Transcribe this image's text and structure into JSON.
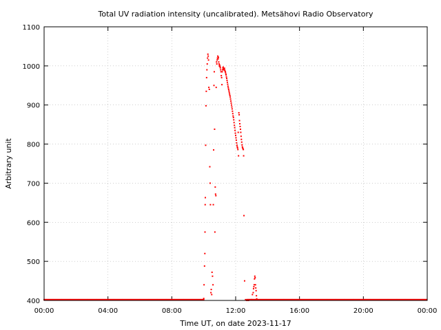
{
  "chart_data": {
    "type": "scatter",
    "title": "Total UV radiation intensity (uncalibrated). Metsähovi Radio Observatory",
    "xlabel": "Time UT, on date 2023-11-17",
    "ylabel": "Arbitrary unit",
    "xlim": [
      0,
      24
    ],
    "ylim": [
      400,
      1100
    ],
    "grid": true,
    "x_ticks": [
      {
        "value": 0,
        "label": "00:00"
      },
      {
        "value": 4,
        "label": "04:00"
      },
      {
        "value": 8,
        "label": "08:00"
      },
      {
        "value": 12,
        "label": "12:00"
      },
      {
        "value": 16,
        "label": "16:00"
      },
      {
        "value": 20,
        "label": "20:00"
      },
      {
        "value": 24,
        "label": "00:00"
      }
    ],
    "y_ticks": [
      {
        "value": 400,
        "label": "400"
      },
      {
        "value": 500,
        "label": "500"
      },
      {
        "value": 600,
        "label": "600"
      },
      {
        "value": 700,
        "label": "700"
      },
      {
        "value": 800,
        "label": "800"
      },
      {
        "value": 900,
        "label": "900"
      },
      {
        "value": 1000,
        "label": "1000"
      },
      {
        "value": 1100,
        "label": "1100"
      }
    ],
    "series": [
      {
        "color": "#ff0000",
        "baseline": {
          "value": 402,
          "ranges": [
            [
              0.0,
              10.0
            ],
            [
              12.7,
              24.0
            ]
          ]
        },
        "points": [
          [
            10.0,
            405
          ],
          [
            10.02,
            440
          ],
          [
            10.05,
            488
          ],
          [
            10.07,
            520
          ],
          [
            10.08,
            575
          ],
          [
            10.09,
            645
          ],
          [
            10.1,
            663
          ],
          [
            10.12,
            797
          ],
          [
            10.14,
            898
          ],
          [
            10.16,
            935
          ],
          [
            10.18,
            970
          ],
          [
            10.2,
            990
          ],
          [
            10.22,
            1005
          ],
          [
            10.24,
            1020
          ],
          [
            10.26,
            1030
          ],
          [
            10.28,
            1025
          ],
          [
            10.3,
            1015
          ],
          [
            10.32,
            945
          ],
          [
            10.35,
            940
          ],
          [
            10.38,
            742
          ],
          [
            10.4,
            700
          ],
          [
            10.42,
            645
          ],
          [
            10.45,
            420
          ],
          [
            10.47,
            428
          ],
          [
            10.5,
            415
          ],
          [
            10.52,
            472
          ],
          [
            10.55,
            462
          ],
          [
            10.58,
            440
          ],
          [
            10.6,
            645
          ],
          [
            10.62,
            785
          ],
          [
            10.64,
            950
          ],
          [
            10.66,
            985
          ],
          [
            10.68,
            838
          ],
          [
            10.7,
            575
          ],
          [
            10.72,
            690
          ],
          [
            10.74,
            672
          ],
          [
            10.76,
            668
          ],
          [
            10.78,
            945
          ],
          [
            10.8,
            1010
          ],
          [
            10.82,
            1005
          ],
          [
            10.84,
            1015
          ],
          [
            10.86,
            1020
          ],
          [
            10.88,
            1025
          ],
          [
            10.9,
            1018
          ],
          [
            10.92,
            1022
          ],
          [
            10.94,
            1010
          ],
          [
            10.96,
            1005
          ],
          [
            10.98,
            1000
          ],
          [
            11.0,
            1002
          ],
          [
            11.02,
            998
          ],
          [
            11.04,
            995
          ],
          [
            11.06,
            990
          ],
          [
            11.08,
            985
          ],
          [
            11.1,
            975
          ],
          [
            11.12,
            970
          ],
          [
            11.14,
            952
          ],
          [
            11.16,
            985
          ],
          [
            11.18,
            990
          ],
          [
            11.2,
            995
          ],
          [
            11.22,
            997
          ],
          [
            11.24,
            993
          ],
          [
            11.26,
            990
          ],
          [
            11.28,
            992
          ],
          [
            11.3,
            994
          ],
          [
            11.32,
            989
          ],
          [
            11.34,
            986
          ],
          [
            11.36,
            984
          ],
          [
            11.38,
            980
          ],
          [
            11.4,
            977
          ],
          [
            11.42,
            972
          ],
          [
            11.44,
            968
          ],
          [
            11.46,
            963
          ],
          [
            11.48,
            958
          ],
          [
            11.5,
            953
          ],
          [
            11.52,
            948
          ],
          [
            11.54,
            944
          ],
          [
            11.56,
            940
          ],
          [
            11.58,
            936
          ],
          [
            11.6,
            932
          ],
          [
            11.62,
            928
          ],
          [
            11.64,
            924
          ],
          [
            11.66,
            920
          ],
          [
            11.68,
            915
          ],
          [
            11.7,
            910
          ],
          [
            11.72,
            905
          ],
          [
            11.74,
            900
          ],
          [
            11.76,
            895
          ],
          [
            11.78,
            890
          ],
          [
            11.8,
            884
          ],
          [
            11.82,
            878
          ],
          [
            11.84,
            872
          ],
          [
            11.86,
            868
          ],
          [
            11.88,
            862
          ],
          [
            11.9,
            855
          ],
          [
            11.92,
            848
          ],
          [
            11.94,
            842
          ],
          [
            11.96,
            835
          ],
          [
            11.98,
            828
          ],
          [
            12.0,
            822
          ],
          [
            12.02,
            816
          ],
          [
            12.04,
            810
          ],
          [
            12.06,
            803
          ],
          [
            12.08,
            797
          ],
          [
            12.1,
            793
          ],
          [
            12.12,
            790
          ],
          [
            12.14,
            786
          ],
          [
            12.16,
            830
          ],
          [
            12.18,
            770
          ],
          [
            12.2,
            880
          ],
          [
            12.22,
            875
          ],
          [
            12.24,
            860
          ],
          [
            12.26,
            852
          ],
          [
            12.28,
            845
          ],
          [
            12.3,
            838
          ],
          [
            12.32,
            830
          ],
          [
            12.34,
            820
          ],
          [
            12.36,
            812
          ],
          [
            12.38,
            805
          ],
          [
            12.4,
            798
          ],
          [
            12.42,
            793
          ],
          [
            12.44,
            790
          ],
          [
            12.46,
            788
          ],
          [
            12.48,
            786
          ],
          [
            12.5,
            770
          ],
          [
            12.52,
            617
          ],
          [
            12.56,
            450
          ],
          [
            12.62,
            402
          ],
          [
            12.7,
            400
          ],
          [
            12.8,
            400
          ],
          [
            12.9,
            401
          ],
          [
            13.0,
            402
          ],
          [
            13.05,
            415
          ],
          [
            13.1,
            420
          ],
          [
            13.12,
            430
          ],
          [
            13.14,
            435
          ],
          [
            13.16,
            440
          ],
          [
            13.18,
            455
          ],
          [
            13.2,
            462
          ],
          [
            13.22,
            458
          ],
          [
            13.24,
            440
          ],
          [
            13.26,
            432
          ],
          [
            13.28,
            425
          ],
          [
            13.3,
            412
          ],
          [
            13.32,
            404
          ]
        ]
      }
    ]
  }
}
